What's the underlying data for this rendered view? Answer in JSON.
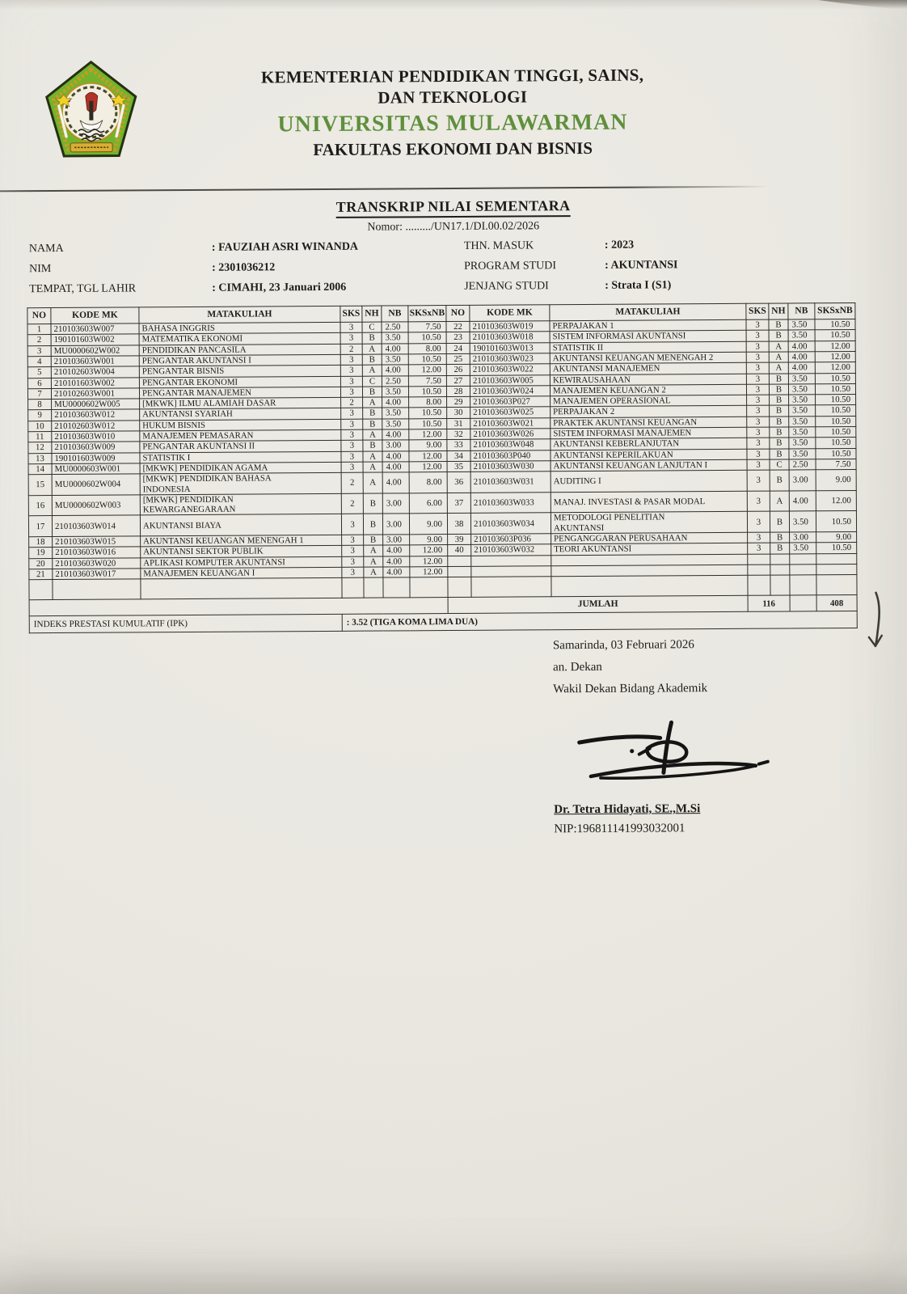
{
  "header": {
    "ministry_line1": "KEMENTERIAN PENDIDIKAN TINGGI, SAINS,",
    "ministry_line2": "DAN TEKNOLOGI",
    "university": "UNIVERSITAS MULAWARMAN",
    "faculty": "FAKULTAS EKONOMI DAN BISNIS",
    "logo": "universitas-mulawarman-seal"
  },
  "title": {
    "doc_title": "TRANSKRIP NILAI SEMENTARA",
    "doc_number": "Nomor: ........./UN17.1/DI.00.02/2026"
  },
  "student": {
    "nama_label": "NAMA",
    "nama": ": FAUZIAH ASRI WINANDA",
    "nim_label": "NIM",
    "nim": ": 2301036212",
    "ttl_label": "TEMPAT, TGL LAHIR",
    "ttl": ": CIMAHI, 23 Januari 2006",
    "thn_label": "THN. MASUK",
    "thn": ": 2023",
    "prodi_label": "PROGRAM STUDI",
    "prodi": ": AKUNTANSI",
    "jenjang_label": "JENJANG STUDI",
    "jenjang": ": Strata I (S1)"
  },
  "table": {
    "headers": [
      "NO",
      "KODE MK",
      "MATAKULIAH",
      "SKS",
      "NH",
      "NB",
      "SKSxNB"
    ],
    "left_rows": [
      {
        "no": "1",
        "kode": "210103603W007",
        "mk": "BAHASA INGGRIS",
        "sks": "3",
        "nh": "C",
        "nb": "2.50",
        "sksnb": "7.50"
      },
      {
        "no": "2",
        "kode": "190101603W002",
        "mk": "MATEMATIKA EKONOMI",
        "sks": "3",
        "nh": "B",
        "nb": "3.50",
        "sksnb": "10.50"
      },
      {
        "no": "3",
        "kode": "MU0000602W002",
        "mk": "PENDIDIKAN PANCASILA",
        "sks": "2",
        "nh": "A",
        "nb": "4.00",
        "sksnb": "8.00"
      },
      {
        "no": "4",
        "kode": "210103603W001",
        "mk": "PENGANTAR AKUNTANSI I",
        "sks": "3",
        "nh": "B",
        "nb": "3.50",
        "sksnb": "10.50"
      },
      {
        "no": "5",
        "kode": "210102603W004",
        "mk": "PENGANTAR BISNIS",
        "sks": "3",
        "nh": "A",
        "nb": "4.00",
        "sksnb": "12.00"
      },
      {
        "no": "6",
        "kode": "210101603W002",
        "mk": "PENGANTAR EKONOMI",
        "sks": "3",
        "nh": "C",
        "nb": "2.50",
        "sksnb": "7.50"
      },
      {
        "no": "7",
        "kode": "210102603W001",
        "mk": "PENGANTAR MANAJEMEN",
        "sks": "3",
        "nh": "B",
        "nb": "3.50",
        "sksnb": "10.50"
      },
      {
        "no": "8",
        "kode": "MU0000602W005",
        "mk": "[MKWK] ILMU ALAMIAH DASAR",
        "sks": "2",
        "nh": "A",
        "nb": "4.00",
        "sksnb": "8.00"
      },
      {
        "no": "9",
        "kode": "210103603W012",
        "mk": "AKUNTANSI SYARIAH",
        "sks": "3",
        "nh": "B",
        "nb": "3.50",
        "sksnb": "10.50"
      },
      {
        "no": "10",
        "kode": "210102603W012",
        "mk": "HUKUM BISNIS",
        "sks": "3",
        "nh": "B",
        "nb": "3.50",
        "sksnb": "10.50"
      },
      {
        "no": "11",
        "kode": "210103603W010",
        "mk": "MANAJEMEN PEMASARAN",
        "sks": "3",
        "nh": "A",
        "nb": "4.00",
        "sksnb": "12.00"
      },
      {
        "no": "12",
        "kode": "210103603W009",
        "mk": "PENGANTAR AKUNTANSI II",
        "sks": "3",
        "nh": "B",
        "nb": "3.00",
        "sksnb": "9.00"
      },
      {
        "no": "13",
        "kode": "190101603W009",
        "mk": "STATISTIK I",
        "sks": "3",
        "nh": "A",
        "nb": "4.00",
        "sksnb": "12.00"
      },
      {
        "no": "14",
        "kode": "MU0000603W001",
        "mk": "[MKWK] PENDIDIKAN AGAMA",
        "sks": "3",
        "nh": "A",
        "nb": "4.00",
        "sksnb": "12.00"
      },
      {
        "no": "15",
        "kode": "MU0000602W004",
        "mk": "[MKWK] PENDIDIKAN BAHASA\nINDONESIA",
        "sks": "2",
        "nh": "A",
        "nb": "4.00",
        "sksnb": "8.00"
      },
      {
        "no": "16",
        "kode": "MU0000602W003",
        "mk": "[MKWK] PENDIDIKAN\nKEWARGANEGARAAN",
        "sks": "2",
        "nh": "B",
        "nb": "3.00",
        "sksnb": "6.00"
      },
      {
        "no": "17",
        "kode": "210103603W014",
        "mk": "AKUNTANSI BIAYA",
        "sks": "3",
        "nh": "B",
        "nb": "3.00",
        "sksnb": "9.00"
      },
      {
        "no": "18",
        "kode": "210103603W015",
        "mk": "AKUNTANSI KEUANGAN MENENGAH 1",
        "sks": "3",
        "nh": "B",
        "nb": "3.00",
        "sksnb": "9.00"
      },
      {
        "no": "19",
        "kode": "210103603W016",
        "mk": "AKUNTANSI SEKTOR PUBLIK",
        "sks": "3",
        "nh": "A",
        "nb": "4.00",
        "sksnb": "12.00"
      },
      {
        "no": "20",
        "kode": "210103603W020",
        "mk": "APLIKASI KOMPUTER AKUNTANSI",
        "sks": "3",
        "nh": "A",
        "nb": "4.00",
        "sksnb": "12.00"
      },
      {
        "no": "21",
        "kode": "210103603W017",
        "mk": "MANAJEMEN KEUANGAN I",
        "sks": "3",
        "nh": "A",
        "nb": "4.00",
        "sksnb": "12.00"
      }
    ],
    "right_rows": [
      {
        "no": "22",
        "kode": "210103603W019",
        "mk": "PERPAJAKAN 1",
        "sks": "3",
        "nh": "B",
        "nb": "3.50",
        "sksnb": "10.50"
      },
      {
        "no": "23",
        "kode": "210103603W018",
        "mk": "SISTEM INFORMASI AKUNTANSI",
        "sks": "3",
        "nh": "B",
        "nb": "3.50",
        "sksnb": "10.50"
      },
      {
        "no": "24",
        "kode": "190101603W013",
        "mk": "STATISTIK II",
        "sks": "3",
        "nh": "A",
        "nb": "4.00",
        "sksnb": "12.00"
      },
      {
        "no": "25",
        "kode": "210103603W023",
        "mk": "AKUNTANSI KEUANGAN MENENGAH 2",
        "sks": "3",
        "nh": "A",
        "nb": "4.00",
        "sksnb": "12.00"
      },
      {
        "no": "26",
        "kode": "210103603W022",
        "mk": "AKUNTANSI MANAJEMEN",
        "sks": "3",
        "nh": "A",
        "nb": "4.00",
        "sksnb": "12.00"
      },
      {
        "no": "27",
        "kode": "210103603W005",
        "mk": "KEWIRAUSAHAAN",
        "sks": "3",
        "nh": "B",
        "nb": "3.50",
        "sksnb": "10.50"
      },
      {
        "no": "28",
        "kode": "210103603W024",
        "mk": "MANAJEMEN KEUANGAN 2",
        "sks": "3",
        "nh": "B",
        "nb": "3.50",
        "sksnb": "10.50"
      },
      {
        "no": "29",
        "kode": "210103603P027",
        "mk": "MANAJEMEN OPERASIONAL",
        "sks": "3",
        "nh": "B",
        "nb": "3.50",
        "sksnb": "10.50"
      },
      {
        "no": "30",
        "kode": "210103603W025",
        "mk": "PERPAJAKAN 2",
        "sks": "3",
        "nh": "B",
        "nb": "3.50",
        "sksnb": "10.50"
      },
      {
        "no": "31",
        "kode": "210103603W021",
        "mk": "PRAKTEK AKUNTANSI KEUANGAN",
        "sks": "3",
        "nh": "B",
        "nb": "3.50",
        "sksnb": "10.50"
      },
      {
        "no": "32",
        "kode": "210103603W026",
        "mk": "SISTEM INFORMASI MANAJEMEN",
        "sks": "3",
        "nh": "B",
        "nb": "3.50",
        "sksnb": "10.50"
      },
      {
        "no": "33",
        "kode": "210103603W048",
        "mk": "AKUNTANSI KEBERLANJUTAN",
        "sks": "3",
        "nh": "B",
        "nb": "3.50",
        "sksnb": "10.50"
      },
      {
        "no": "34",
        "kode": "210103603P040",
        "mk": "AKUNTANSI KEPERILAKUAN",
        "sks": "3",
        "nh": "B",
        "nb": "3.50",
        "sksnb": "10.50"
      },
      {
        "no": "35",
        "kode": "210103603W030",
        "mk": "AKUNTANSI KEUANGAN LANJUTAN I",
        "sks": "3",
        "nh": "C",
        "nb": "2.50",
        "sksnb": "7.50"
      },
      {
        "no": "36",
        "kode": "210103603W031",
        "mk": "AUDITING I",
        "sks": "3",
        "nh": "B",
        "nb": "3.00",
        "sksnb": "9.00"
      },
      {
        "no": "37",
        "kode": "210103603W033",
        "mk": "MANAJ. INVESTASI & PASAR MODAL",
        "sks": "3",
        "nh": "A",
        "nb": "4.00",
        "sksnb": "12.00"
      },
      {
        "no": "38",
        "kode": "210103603W034",
        "mk": "METODOLOGI PENELITIAN\nAKUNTANSI",
        "sks": "3",
        "nh": "B",
        "nb": "3.50",
        "sksnb": "10.50"
      },
      {
        "no": "39",
        "kode": "210103603P036",
        "mk": "PENGANGGARAN PERUSAHAAN",
        "sks": "3",
        "nh": "B",
        "nb": "3.00",
        "sksnb": "9.00"
      },
      {
        "no": "40",
        "kode": "210103603W032",
        "mk": "TEORI AKUNTANSI",
        "sks": "3",
        "nh": "B",
        "nb": "3.50",
        "sksnb": "10.50"
      }
    ],
    "jumlah_label": "JUMLAH",
    "jumlah_sks": "116",
    "jumlah_sksxnb": "408",
    "ipk_label": "INDEKS PRESTASI KUMULATIF (IPK)",
    "ipk_value": ": 3.52 (TIGA KOMA LIMA DUA)"
  },
  "signature": {
    "place_date": "Samarinda, 03 Februari 2026",
    "an": "an. Dekan",
    "role": "Wakil Dekan Bidang Akademik",
    "name": "Dr. Tetra Hidayati, SE.,M.Si",
    "nip": "NIP:196811141993032001"
  },
  "colors": {
    "university_green": "#5f8f3c",
    "paper": "#e9e7e0"
  }
}
